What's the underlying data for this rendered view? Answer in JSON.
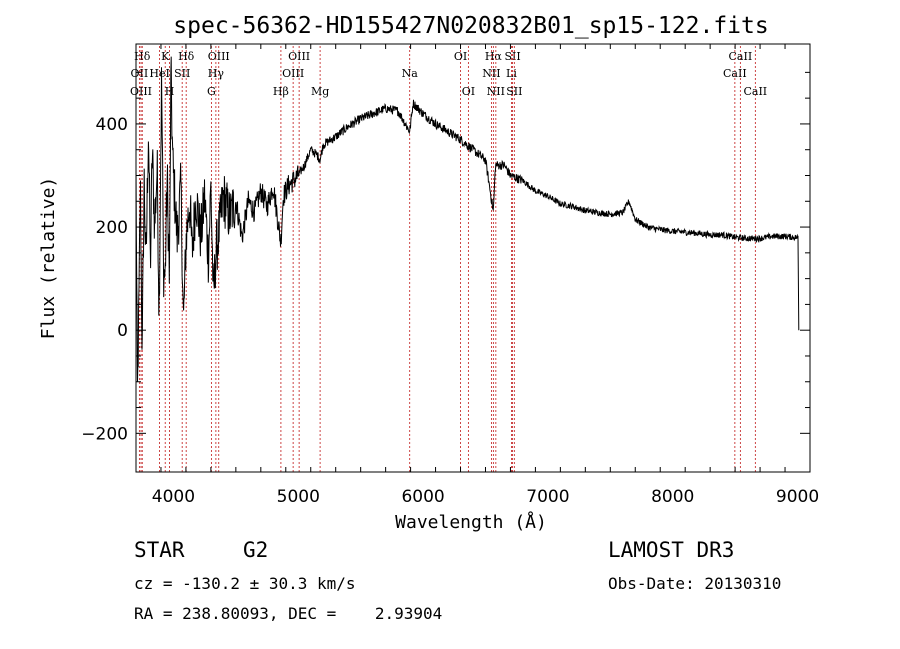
{
  "chart_data": {
    "type": "line",
    "title": "spec-56362-HD155427N020832B01_sp15-122.fits",
    "xlabel": "Wavelength (Å)",
    "ylabel": "Flux (relative)",
    "xlim": [
      3700,
      9100
    ],
    "ylim": [
      -275,
      555
    ],
    "xticks": [
      4000,
      5000,
      6000,
      7000,
      8000,
      9000
    ],
    "yticks": [
      -200,
      0,
      200,
      400
    ],
    "series": [
      {
        "name": "spectrum",
        "anchors": [
          [
            3700,
            300
          ],
          [
            3712,
            -120
          ],
          [
            3722,
            20
          ],
          [
            3735,
            280
          ],
          [
            3750,
            -50
          ],
          [
            3765,
            300
          ],
          [
            3780,
            120
          ],
          [
            3800,
            400
          ],
          [
            3815,
            120
          ],
          [
            3830,
            350
          ],
          [
            3850,
            200
          ],
          [
            3870,
            320
          ],
          [
            3885,
            30
          ],
          [
            3905,
            500
          ],
          [
            3920,
            120
          ],
          [
            3933,
            100
          ],
          [
            3950,
            300
          ],
          [
            3968,
            90
          ],
          [
            3980,
            500
          ],
          [
            3995,
            320
          ],
          [
            4030,
            180
          ],
          [
            4060,
            280
          ],
          [
            4080,
            10
          ],
          [
            4102,
            180
          ],
          [
            4130,
            250
          ],
          [
            4150,
            150
          ],
          [
            4180,
            260
          ],
          [
            4220,
            180
          ],
          [
            4250,
            260
          ],
          [
            4280,
            140
          ],
          [
            4300,
            280
          ],
          [
            4320,
            60
          ],
          [
            4340,
            150
          ],
          [
            4370,
            200
          ],
          [
            4400,
            260
          ],
          [
            4450,
            220
          ],
          [
            4500,
            250
          ],
          [
            4550,
            180
          ],
          [
            4600,
            250
          ],
          [
            4650,
            230
          ],
          [
            4700,
            270
          ],
          [
            4750,
            240
          ],
          [
            4800,
            280
          ],
          [
            4860,
            170
          ],
          [
            4880,
            260
          ],
          [
            4920,
            280
          ],
          [
            5000,
            300
          ],
          [
            5050,
            320
          ],
          [
            5100,
            350
          ],
          [
            5150,
            340
          ],
          [
            5175,
            330
          ],
          [
            5200,
            360
          ],
          [
            5300,
            375
          ],
          [
            5400,
            395
          ],
          [
            5500,
            410
          ],
          [
            5600,
            420
          ],
          [
            5700,
            430
          ],
          [
            5800,
            425
          ],
          [
            5893,
            385
          ],
          [
            5920,
            440
          ],
          [
            6000,
            420
          ],
          [
            6100,
            400
          ],
          [
            6200,
            385
          ],
          [
            6300,
            370
          ],
          [
            6400,
            350
          ],
          [
            6500,
            330
          ],
          [
            6563,
            230
          ],
          [
            6580,
            320
          ],
          [
            6650,
            320
          ],
          [
            6700,
            300
          ],
          [
            6800,
            290
          ],
          [
            6900,
            270
          ],
          [
            7000,
            260
          ],
          [
            7100,
            245
          ],
          [
            7200,
            240
          ],
          [
            7300,
            232
          ],
          [
            7400,
            228
          ],
          [
            7500,
            225
          ],
          [
            7600,
            228
          ],
          [
            7650,
            250
          ],
          [
            7700,
            215
          ],
          [
            7800,
            200
          ],
          [
            7900,
            195
          ],
          [
            8000,
            192
          ],
          [
            8100,
            190
          ],
          [
            8200,
            188
          ],
          [
            8300,
            185
          ],
          [
            8400,
            185
          ],
          [
            8500,
            180
          ],
          [
            8600,
            178
          ],
          [
            8700,
            178
          ],
          [
            8800,
            182
          ],
          [
            8900,
            182
          ],
          [
            8980,
            180
          ],
          [
            9005,
            180
          ],
          [
            9010,
            0
          ]
        ]
      }
    ],
    "lines": [
      {
        "label": "Hδ",
        "x": 3750,
        "row": 0
      },
      {
        "label": "OII",
        "x": 3727,
        "row": 1
      },
      {
        "label": "OIII",
        "x": 3740,
        "row": 2
      },
      {
        "label": "K",
        "x": 3934,
        "row": 0
      },
      {
        "label": "HeI",
        "x": 3889,
        "row": 1
      },
      {
        "label": "H",
        "x": 3969,
        "row": 2
      },
      {
        "label": "Hδ",
        "x": 4102,
        "row": 0
      },
      {
        "label": "SII",
        "x": 4070,
        "row": 1
      },
      {
        "label": "OIII",
        "x": 4363,
        "row": 0
      },
      {
        "label": "Hγ",
        "x": 4340,
        "row": 1
      },
      {
        "label": "G",
        "x": 4304,
        "row": 2
      },
      {
        "label": "OIII",
        "x": 5007,
        "row": 0
      },
      {
        "label": "OIII",
        "x": 4959,
        "row": 1
      },
      {
        "label": "Hβ",
        "x": 4861,
        "row": 2
      },
      {
        "label": "Mg",
        "x": 5175,
        "row": 2
      },
      {
        "label": "Na",
        "x": 5893,
        "row": 1
      },
      {
        "label": "OI",
        "x": 6300,
        "row": 0
      },
      {
        "label": "OI",
        "x": 6363,
        "row": 2
      },
      {
        "label": "Hα",
        "x": 6563,
        "row": 0
      },
      {
        "label": "SII",
        "x": 6717,
        "row": 0
      },
      {
        "label": "NII",
        "x": 6548,
        "row": 1
      },
      {
        "label": "Li",
        "x": 6708,
        "row": 1
      },
      {
        "label": "NII",
        "x": 6583,
        "row": 2
      },
      {
        "label": "SII",
        "x": 6731,
        "row": 2
      },
      {
        "label": "CaII",
        "x": 8542,
        "row": 0
      },
      {
        "label": "CaII",
        "x": 8498,
        "row": 1
      },
      {
        "label": "CaII",
        "x": 8662,
        "row": 2
      }
    ]
  },
  "info": {
    "object_class": "STAR",
    "subclass": "G2",
    "survey": "LAMOST DR3",
    "redshift": "cz = -130.2 ± 30.3 km/s",
    "obs_date": "Obs-Date: 20130310",
    "coords": "RA = 238.80093, DEC =    2.93904"
  },
  "colors": {
    "axes": "#000000",
    "spectrum": "#000000",
    "line_markers": "#c01818"
  }
}
